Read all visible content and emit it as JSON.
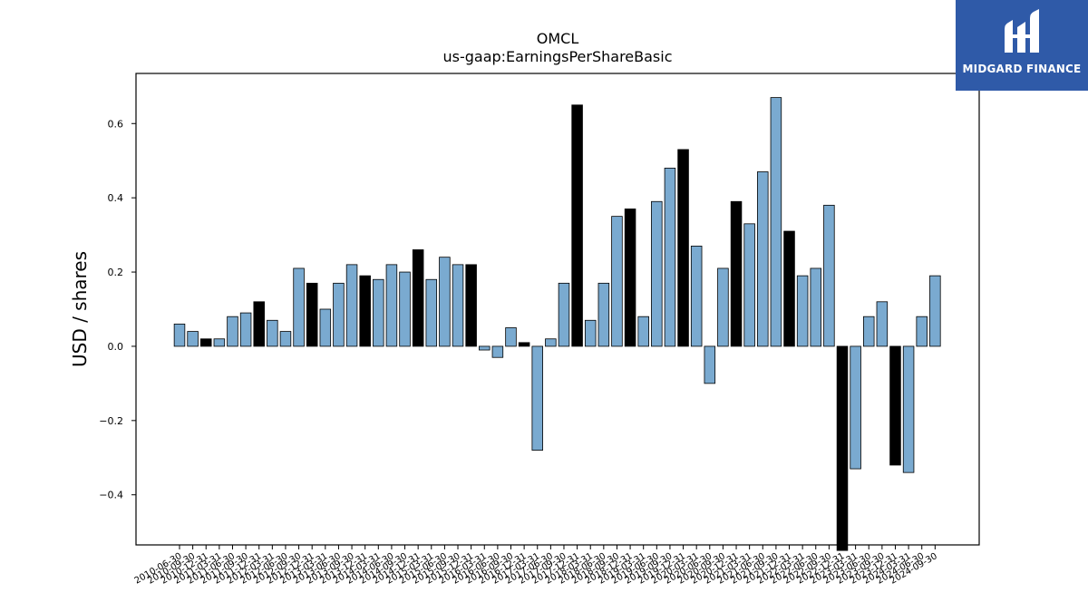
{
  "brand": {
    "name": "MIDGARD FINANCE",
    "bg_color": "#2f5aa8"
  },
  "chart_data": {
    "type": "bar",
    "title": "OMCL",
    "subtitle": "us-gaap:EarningsPerShareBasic",
    "xlabel": "",
    "ylabel": "USD / shares",
    "ylim": [
      -0.535,
      0.735
    ],
    "yticks": [
      -0.4,
      -0.2,
      0.0,
      0.2,
      0.4,
      0.6
    ],
    "ytick_labels": [
      "−0.4",
      "−0.2",
      "0.0",
      "0.2",
      "0.4",
      "0.6"
    ],
    "grid": false,
    "colors": {
      "quarter": "#7aaad0",
      "annual": "#000000"
    },
    "categories": [
      "2010-06-30",
      "2010-09-30",
      "2010-12-31",
      "2011-03-31",
      "2011-06-30",
      "2011-09-30",
      "2011-12-31",
      "2012-03-31",
      "2012-06-30",
      "2012-09-30",
      "2012-12-31",
      "2013-03-31",
      "2013-06-30",
      "2013-09-30",
      "2013-12-31",
      "2014-03-31",
      "2014-06-30",
      "2014-09-30",
      "2014-12-31",
      "2015-03-31",
      "2015-06-30",
      "2015-09-30",
      "2015-12-31",
      "2016-03-31",
      "2016-06-30",
      "2016-09-30",
      "2016-12-31",
      "2017-03-31",
      "2017-06-30",
      "2017-09-30",
      "2017-12-31",
      "2018-03-31",
      "2018-06-30",
      "2018-09-30",
      "2018-12-31",
      "2019-03-31",
      "2019-06-30",
      "2019-09-30",
      "2019-12-31",
      "2020-03-31",
      "2020-06-30",
      "2020-09-30",
      "2020-12-31",
      "2021-03-31",
      "2021-06-30",
      "2021-09-30",
      "2021-12-31",
      "2022-03-31",
      "2022-06-30",
      "2022-09-30",
      "2022-12-31",
      "2023-03-31",
      "2023-06-30",
      "2023-09-30",
      "2023-12-31",
      "2024-03-31",
      "2024-06-30",
      "2024-09-30"
    ],
    "values": [
      0.06,
      0.04,
      0.02,
      0.02,
      0.08,
      0.09,
      0.12,
      0.07,
      0.04,
      0.21,
      0.17,
      0.1,
      0.17,
      0.22,
      0.19,
      0.18,
      0.22,
      0.2,
      0.26,
      0.18,
      0.24,
      0.22,
      0.22,
      -0.01,
      -0.03,
      0.05,
      0.01,
      -0.28,
      0.02,
      0.17,
      0.65,
      0.07,
      0.17,
      0.35,
      0.37,
      0.08,
      0.39,
      0.48,
      0.53,
      0.27,
      -0.1,
      0.21,
      0.39,
      0.33,
      0.47,
      0.67,
      0.31,
      0.19,
      0.21,
      0.38,
      -0.55,
      -0.33,
      0.08,
      0.12,
      -0.32,
      -0.34,
      0.08,
      0.19
    ],
    "annual_flags": [
      0,
      0,
      1,
      0,
      0,
      0,
      1,
      0,
      0,
      0,
      1,
      0,
      0,
      0,
      1,
      0,
      0,
      0,
      1,
      0,
      0,
      0,
      1,
      0,
      0,
      0,
      1,
      0,
      0,
      0,
      1,
      0,
      0,
      0,
      1,
      0,
      0,
      0,
      1,
      0,
      0,
      0,
      1,
      0,
      0,
      0,
      1,
      0,
      0,
      0,
      1,
      0,
      0,
      0,
      1,
      0,
      0,
      0
    ]
  }
}
